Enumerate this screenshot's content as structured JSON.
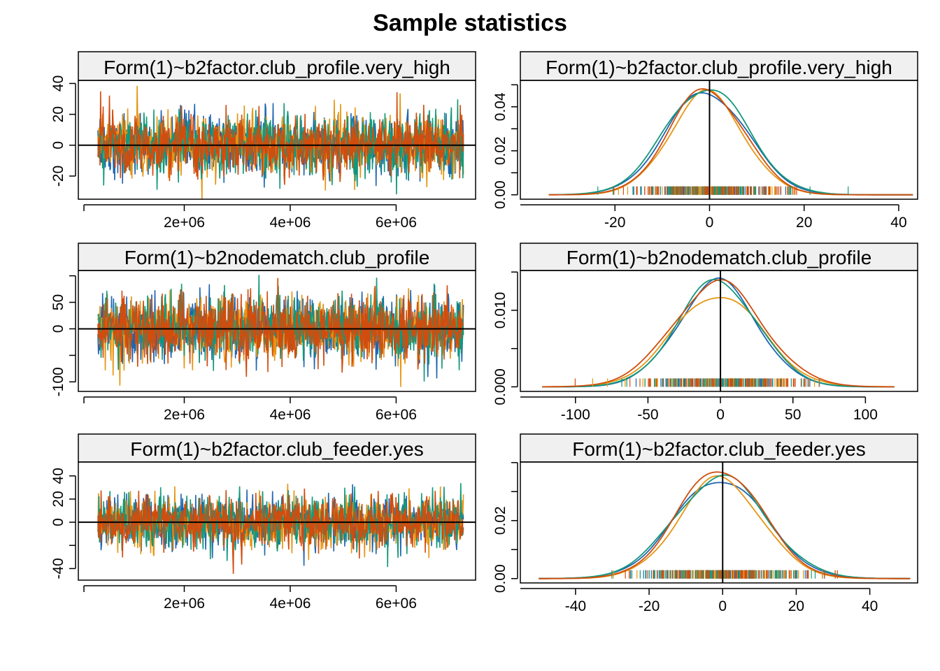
{
  "title": "Sample statistics",
  "colors": {
    "series": [
      "#1f65b0",
      "#e69512",
      "#13987a",
      "#d04d0e"
    ],
    "strip_bg": "#f0f0f0",
    "frame": "#000000"
  },
  "chart_data": [
    {
      "type": "line",
      "strip": "Form(1)~b2factor.club_profile.very_high",
      "x_ticks": [
        "2e+06",
        "4e+06",
        "6e+06"
      ],
      "x_tick_values": [
        2000000,
        4000000,
        6000000
      ],
      "y_ticks": [
        "-20",
        "0",
        "20",
        "40"
      ],
      "y_tick_values": [
        -20,
        0,
        20,
        40
      ],
      "xlim": [
        0,
        7500000
      ],
      "ylim": [
        -35,
        42
      ],
      "x_range": [
        370000,
        7270000
      ],
      "sd": 10,
      "series_count": 4,
      "hline": 0
    },
    {
      "type": "line",
      "strip": "Form(1)~b2factor.club_profile.very_high",
      "x_ticks": [
        "-20",
        "0",
        "20",
        "40"
      ],
      "x_tick_values": [
        -20,
        0,
        20,
        40
      ],
      "y_ticks": [
        "0.00",
        "0.02",
        "0.04"
      ],
      "y_tick_values": [
        0,
        0.02,
        0.04
      ],
      "y_minor": [
        0.01,
        0.03,
        0.05
      ],
      "xlim": [
        -40,
        44
      ],
      "ylim": [
        -0.002,
        0.052
      ],
      "density_range": [
        -34,
        43
      ],
      "sd": 8.4,
      "peaks": [
        0.047,
        0.046,
        0.049,
        0.048
      ],
      "vline": 0
    },
    {
      "type": "line",
      "strip": "Form(1)~b2nodematch.club_profile",
      "x_ticks": [
        "2e+06",
        "4e+06",
        "6e+06"
      ],
      "x_tick_values": [
        2000000,
        4000000,
        6000000
      ],
      "y_ticks": [
        "-100",
        "0",
        "50"
      ],
      "y_tick_values": [
        -100,
        0,
        50
      ],
      "y_minor": [
        -50,
        100
      ],
      "xlim": [
        0,
        7500000
      ],
      "ylim": [
        -118,
        110
      ],
      "x_range": [
        370000,
        7270000
      ],
      "sd": 30,
      "series_count": 4,
      "hline": 0
    },
    {
      "type": "line",
      "strip": "Form(1)~b2nodematch.club_profile",
      "x_ticks": [
        "-100",
        "-50",
        "0",
        "50",
        "100"
      ],
      "x_tick_values": [
        -100,
        -50,
        0,
        50,
        100
      ],
      "y_ticks": [
        "0.000",
        "0.010"
      ],
      "y_tick_values": [
        0,
        0.01
      ],
      "y_minor": [
        0.005,
        0.015
      ],
      "xlim": [
        -138,
        136
      ],
      "ylim": [
        -0.0006,
        0.0152
      ],
      "density_range": [
        -123,
        120
      ],
      "sd": 29,
      "peaks": [
        0.0137,
        0.0121,
        0.0138,
        0.0136
      ],
      "vline": 0
    },
    {
      "type": "line",
      "strip": "Form(1)~b2factor.club_feeder.yes",
      "x_ticks": [
        "2e+06",
        "4e+06",
        "6e+06"
      ],
      "x_tick_values": [
        2000000,
        4000000,
        6000000
      ],
      "y_ticks": [
        "-40",
        "0",
        "20",
        "40"
      ],
      "y_tick_values": [
        -40,
        0,
        20,
        40
      ],
      "y_minor": [
        -20
      ],
      "xlim": [
        0,
        7500000
      ],
      "ylim": [
        -50,
        52
      ],
      "x_range": [
        370000,
        7270000
      ],
      "sd": 11,
      "series_count": 4,
      "hline": 0
    },
    {
      "type": "line",
      "strip": "Form(1)~b2factor.club_feeder.yes",
      "x_ticks": [
        "-40",
        "-20",
        "0",
        "20",
        "40"
      ],
      "x_tick_values": [
        -40,
        -20,
        0,
        20,
        40
      ],
      "y_ticks": [
        "0.00",
        "0.02"
      ],
      "y_tick_values": [
        0,
        0.02
      ],
      "y_minor": [
        0.01,
        0.03,
        0.04
      ],
      "xlim": [
        -55,
        53
      ],
      "ylim": [
        -0.0015,
        0.0402
      ],
      "density_range": [
        -50,
        51
      ],
      "sd": 11.5,
      "peaks": [
        0.0345,
        0.0345,
        0.035,
        0.038
      ],
      "vline": 0
    }
  ]
}
